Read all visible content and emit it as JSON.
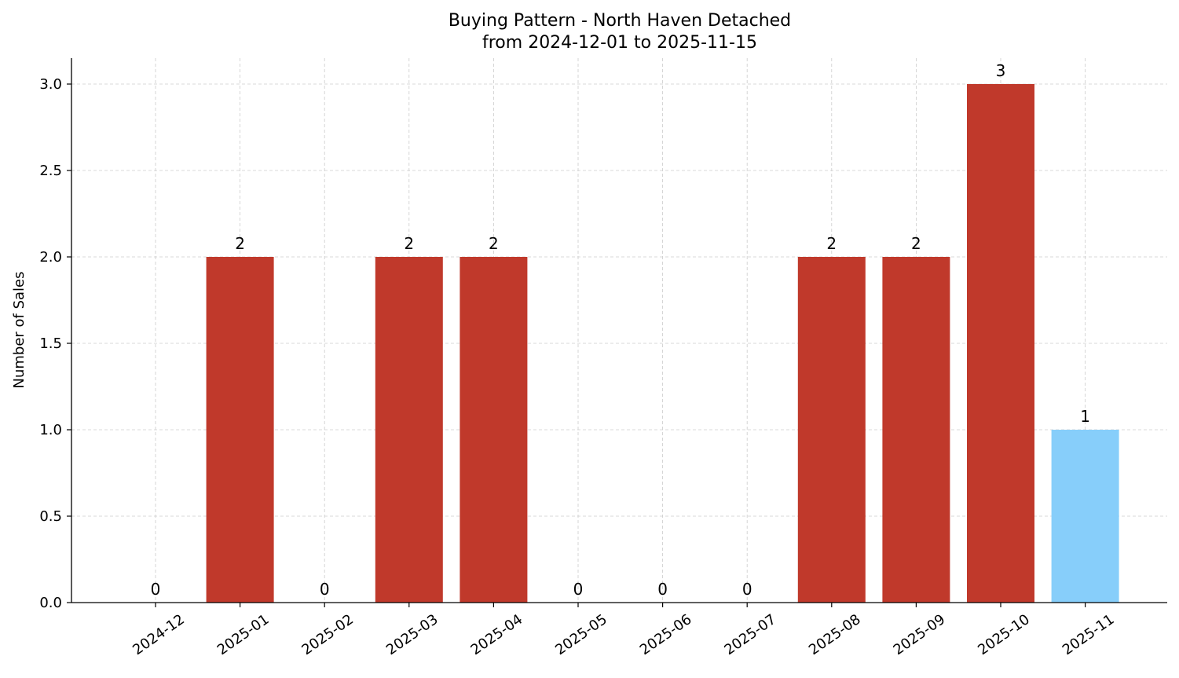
{
  "chart_data": {
    "type": "bar",
    "title": "Buying Pattern - North Haven Detached",
    "subtitle": "from 2024-12-01 to 2025-11-15",
    "xlabel": "",
    "ylabel": "Number of Sales",
    "categories": [
      "2024-12",
      "2025-01",
      "2025-02",
      "2025-03",
      "2025-04",
      "2025-05",
      "2025-06",
      "2025-07",
      "2025-08",
      "2025-09",
      "2025-10",
      "2025-11"
    ],
    "values": [
      0,
      2,
      0,
      2,
      2,
      0,
      0,
      0,
      2,
      2,
      3,
      1
    ],
    "data_labels": [
      "0",
      "2",
      "0",
      "2",
      "2",
      "0",
      "0",
      "0",
      "2",
      "2",
      "3",
      "1"
    ],
    "bar_colors": [
      "#c0392b",
      "#c0392b",
      "#c0392b",
      "#c0392b",
      "#c0392b",
      "#c0392b",
      "#c0392b",
      "#c0392b",
      "#c0392b",
      "#c0392b",
      "#c0392b",
      "#87cefa"
    ],
    "ylim": [
      0,
      3.15
    ],
    "yticks": [
      "0.0",
      "0.5",
      "1.0",
      "1.5",
      "2.0",
      "2.5",
      "3.0"
    ],
    "grid": true,
    "legend": "none"
  }
}
